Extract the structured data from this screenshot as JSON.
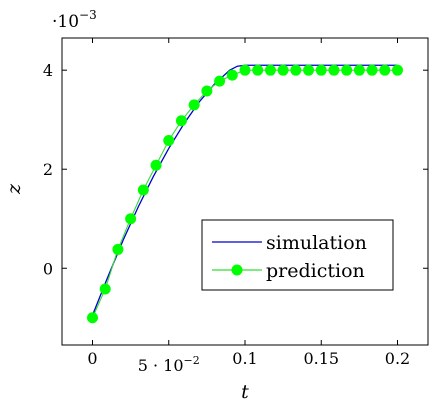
{
  "chart_data": {
    "type": "line",
    "title": "",
    "xlabel": "t",
    "ylabel": "z",
    "y_scale_label": {
      "base": "·10",
      "exponent": "−3"
    },
    "xlim": [
      -0.02,
      0.22
    ],
    "ylim": [
      -1.55,
      4.65
    ],
    "x_ticks": [
      {
        "value": 0,
        "label": "0"
      },
      {
        "value": 0.05,
        "label": "5 · 10",
        "exp": "−2"
      },
      {
        "value": 0.1,
        "label": "0.1"
      },
      {
        "value": 0.15,
        "label": "0.15"
      },
      {
        "value": 0.2,
        "label": "0.2"
      }
    ],
    "y_ticks": [
      {
        "value": 0,
        "label": "0"
      },
      {
        "value": 2,
        "label": "2"
      },
      {
        "value": 4,
        "label": "4"
      }
    ],
    "grid": false,
    "legend_position": "bottom-right",
    "series": [
      {
        "name": "simulation",
        "color": "#0000cc",
        "marker": "none",
        "x": [
          0,
          0.01,
          0.02,
          0.03,
          0.04,
          0.05,
          0.06,
          0.07,
          0.08,
          0.09,
          0.095,
          0.1,
          0.15,
          0.2
        ],
        "y": [
          -0.95,
          -0.18,
          0.56,
          1.24,
          1.86,
          2.42,
          2.92,
          3.36,
          3.72,
          4.0,
          4.08,
          4.1,
          4.1,
          4.1
        ]
      },
      {
        "name": "prediction",
        "color": "#00ff00",
        "line_color": "#33dd33",
        "marker": "circle",
        "x": [
          0,
          0.00833,
          0.01667,
          0.025,
          0.03333,
          0.04167,
          0.05,
          0.05833,
          0.06667,
          0.075,
          0.08333,
          0.09167,
          0.1,
          0.10833,
          0.11667,
          0.125,
          0.13333,
          0.14167,
          0.15,
          0.15833,
          0.16667,
          0.175,
          0.18333,
          0.19167,
          0.2
        ],
        "y": [
          -1.0,
          -0.42,
          0.38,
          1.0,
          1.58,
          2.08,
          2.58,
          2.98,
          3.3,
          3.58,
          3.78,
          3.9,
          4.0,
          4.0,
          4.0,
          4.0,
          4.0,
          4.0,
          4.0,
          4.0,
          4.0,
          4.0,
          4.0,
          4.0,
          4.0
        ]
      }
    ]
  }
}
